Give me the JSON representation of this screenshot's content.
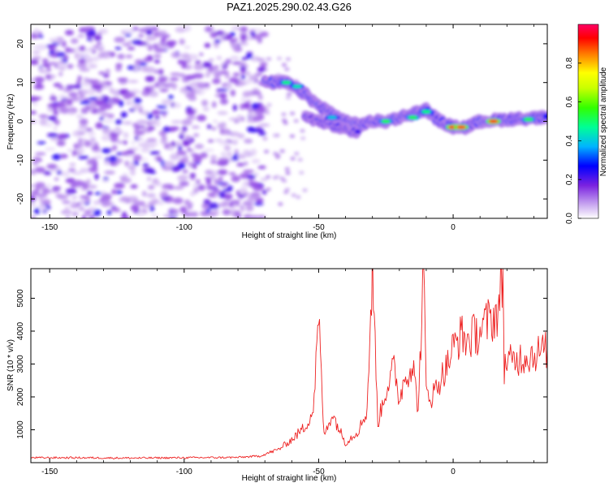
{
  "title": "PAZ1.2025.290.02.43.G26",
  "colors": {
    "snr_line": "#ee2222",
    "background": "#ffffff",
    "axis": "#000000"
  },
  "chart_data": [
    {
      "type": "heatmap",
      "name": "spectrogram",
      "xlabel": "Height of straight line (km)",
      "ylabel": "Frequency (Hz)",
      "xlim": [
        -157,
        35
      ],
      "ylim": [
        -25,
        25
      ],
      "x_ticks": [
        -150,
        -100,
        -50,
        0
      ],
      "x_tick_labels": [
        "-150",
        "-100",
        "-50",
        "0"
      ],
      "y_ticks": [
        -20,
        -10,
        0,
        10,
        20
      ],
      "y_tick_labels": [
        "-20",
        "-10",
        "0",
        "10",
        "20"
      ],
      "colorbar": {
        "label": "Normalized spectral amplitude",
        "range": [
          0,
          1
        ],
        "ticks": [
          0.0,
          0.2,
          0.4,
          0.6,
          0.8
        ],
        "tick_labels": [
          "0.0",
          "0.2",
          "0.4",
          "0.6",
          "0.8"
        ]
      },
      "noise_region": {
        "x_from": -157,
        "x_to": -70,
        "y_from": -25,
        "y_to": 24,
        "amplitude": 0.15
      },
      "signal_track": {
        "points": [
          {
            "x": -70,
            "y": 10
          },
          {
            "x": -62,
            "y": 10
          },
          {
            "x": -55,
            "y": 7
          },
          {
            "x": -50,
            "y": 4
          },
          {
            "x": -45,
            "y": 2
          },
          {
            "x": -40,
            "y": 0
          },
          {
            "x": -35,
            "y": -1
          },
          {
            "x": -30,
            "y": 0
          },
          {
            "x": -25,
            "y": 0
          },
          {
            "x": -20,
            "y": 1
          },
          {
            "x": -15,
            "y": 2
          },
          {
            "x": -10,
            "y": 3
          },
          {
            "x": -5,
            "y": 0
          },
          {
            "x": 0,
            "y": -1.5
          },
          {
            "x": 5,
            "y": -1.5
          },
          {
            "x": 10,
            "y": 0
          },
          {
            "x": 20,
            "y": 0.5
          },
          {
            "x": 35,
            "y": 1
          }
        ],
        "secondary_branch": [
          {
            "x": -55,
            "y": 1
          },
          {
            "x": -50,
            "y": 0
          },
          {
            "x": -45,
            "y": -1
          },
          {
            "x": -40,
            "y": -2
          },
          {
            "x": -35,
            "y": -3
          }
        ],
        "hotspots": [
          {
            "x": -62,
            "y": 10,
            "amplitude": 0.5
          },
          {
            "x": -58,
            "y": 9,
            "amplitude": 0.45
          },
          {
            "x": -45,
            "y": 1,
            "amplitude": 0.4
          },
          {
            "x": -25,
            "y": 0,
            "amplitude": 0.55
          },
          {
            "x": -15,
            "y": 1,
            "amplitude": 0.55
          },
          {
            "x": -10,
            "y": 2.5,
            "amplitude": 0.5
          },
          {
            "x": 0,
            "y": -1.5,
            "amplitude": 0.95
          },
          {
            "x": 3,
            "y": -1.5,
            "amplitude": 0.9
          },
          {
            "x": 15,
            "y": 0,
            "amplitude": 0.92
          },
          {
            "x": 28,
            "y": 0.5,
            "amplitude": 0.55
          }
        ]
      }
    },
    {
      "type": "line",
      "name": "snr",
      "xlabel": "Height of straight line (km)",
      "ylabel": "SNR (10 * v/v)",
      "xlim": [
        -157,
        35
      ],
      "ylim": [
        0,
        5900
      ],
      "x_ticks": [
        -150,
        -100,
        -50,
        0
      ],
      "x_tick_labels": [
        "-150",
        "-100",
        "-50",
        "0"
      ],
      "y_ticks": [
        1000,
        2000,
        3000,
        4000,
        5000
      ],
      "y_tick_labels": [
        "1000",
        "2000",
        "3000",
        "4000",
        "5000"
      ],
      "series": [
        {
          "name": "SNR",
          "x": [
            -157,
            -140,
            -120,
            -100,
            -80,
            -72,
            -65,
            -60,
            -55,
            -52,
            -50,
            -48,
            -45,
            -40,
            -35,
            -32,
            -30,
            -28,
            -25,
            -22,
            -20,
            -18,
            -15,
            -13,
            -11,
            -10,
            -8,
            -5,
            -2,
            0,
            3,
            5,
            8,
            10,
            13,
            15,
            17,
            18.5,
            19,
            20,
            22,
            25,
            30,
            35
          ],
          "y": [
            150,
            150,
            140,
            150,
            160,
            200,
            400,
            700,
            1100,
            1600,
            4400,
            800,
            1500,
            600,
            1000,
            1600,
            5900,
            1200,
            2200,
            2900,
            1900,
            2600,
            3000,
            1600,
            5850,
            2200,
            2000,
            2500,
            3000,
            3500,
            3900,
            3700,
            3900,
            4000,
            4300,
            4400,
            4700,
            5700,
            2900,
            3100,
            3050,
            3200,
            3300,
            3450
          ]
        }
      ]
    }
  ]
}
